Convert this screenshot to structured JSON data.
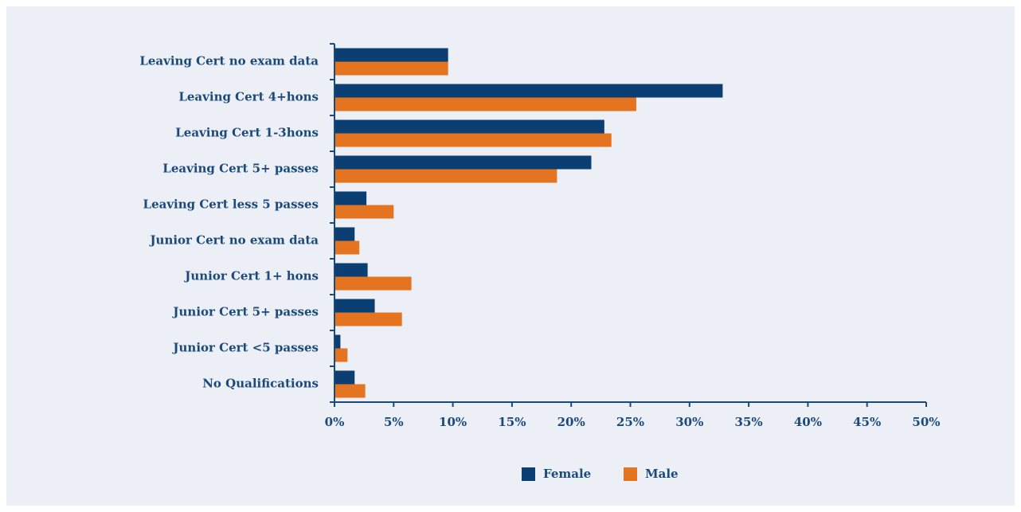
{
  "chart_data": {
    "type": "hbar",
    "categories": [
      "Leaving Cert no exam data",
      "Leaving Cert 4+hons",
      "Leaving Cert 1-3hons",
      "Leaving Cert 5+ passes",
      "Leaving Cert less 5 passes",
      "Junior Cert no exam data",
      "Junior Cert 1+ hons",
      "Junior Cert 5+ passes",
      "Junior Cert <5 passes",
      "No Qualifications"
    ],
    "series": [
      {
        "name": "Female",
        "color": "#0b3f73",
        "values": [
          9.6,
          32.8,
          22.8,
          21.7,
          2.7,
          1.7,
          2.8,
          3.4,
          0.5,
          1.7
        ]
      },
      {
        "name": "Male",
        "color": "#e57421",
        "values": [
          9.6,
          25.5,
          23.4,
          18.8,
          5.0,
          2.1,
          6.5,
          5.7,
          1.1,
          2.6
        ]
      }
    ],
    "xlim": [
      0,
      50
    ],
    "xticks": [
      {
        "value": 0,
        "label": "0%"
      },
      {
        "value": 5,
        "label": "5%"
      },
      {
        "value": 10,
        "label": "10%"
      },
      {
        "value": 15,
        "label": "15%"
      },
      {
        "value": 20,
        "label": "20%"
      },
      {
        "value": 25,
        "label": "25%"
      },
      {
        "value": 30,
        "label": "30%"
      },
      {
        "value": 35,
        "label": "35%"
      },
      {
        "value": 40,
        "label": "40%"
      },
      {
        "value": 45,
        "label": "45%"
      },
      {
        "value": 50,
        "label": "50%"
      }
    ],
    "legend": "bottom"
  }
}
